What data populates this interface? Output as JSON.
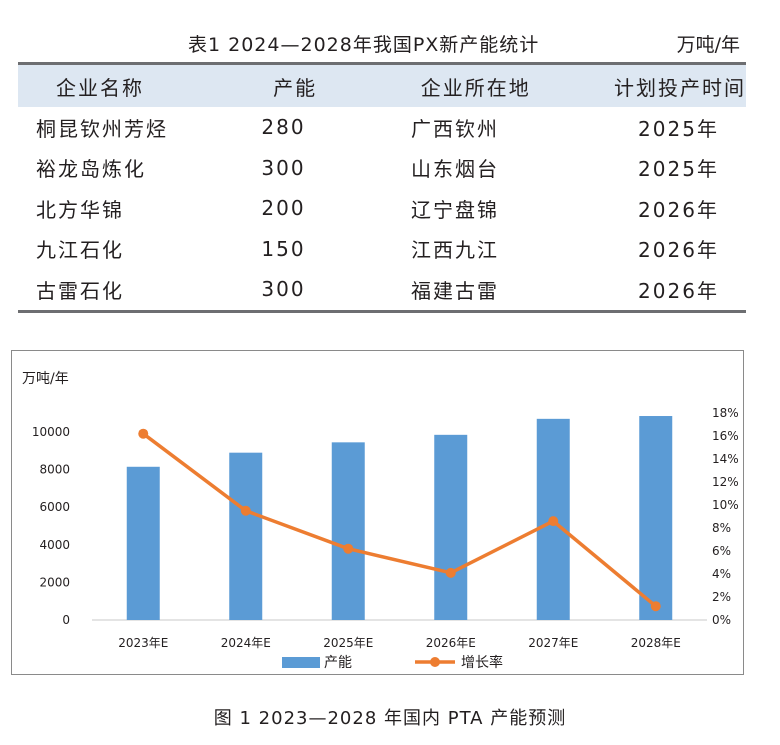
{
  "table": {
    "title": "表1  2024—2028年我国PX新产能统计",
    "unit": "万吨/年",
    "headers": [
      "企业名称",
      "产能",
      "企业所在地",
      "计划投产时间"
    ],
    "rows": [
      [
        "桐昆钦州芳烃",
        "280",
        "广西钦州",
        "2025年"
      ],
      [
        "裕龙岛炼化",
        "300",
        "山东烟台",
        "2025年"
      ],
      [
        "北方华锦",
        "200",
        "辽宁盘锦",
        "2026年"
      ],
      [
        "九江石化",
        "150",
        "江西九江",
        "2026年"
      ],
      [
        "古雷石化",
        "300",
        "福建古雷",
        "2026年"
      ]
    ]
  },
  "chart_data": {
    "type": "bar",
    "unit_label": "万吨/年",
    "categories": [
      "2023年E",
      "2024年E",
      "2025年E",
      "2026年E",
      "2027年E",
      "2028年E"
    ],
    "series": [
      {
        "name": "产能",
        "type": "bar",
        "axis": "left",
        "color": "#5b9bd5",
        "values": [
          8150,
          8900,
          9450,
          9850,
          10700,
          10850
        ]
      },
      {
        "name": "增长率",
        "type": "line",
        "axis": "right",
        "color": "#ed7d31",
        "values": [
          16.2,
          9.5,
          6.2,
          4.1,
          8.6,
          1.2
        ]
      }
    ],
    "y_left": {
      "min": 0,
      "max": 10000,
      "ticks": [
        0,
        2000,
        4000,
        6000,
        8000,
        10000
      ]
    },
    "y_right": {
      "min": 0,
      "max": 18,
      "ticks": [
        "0%",
        "2%",
        "4%",
        "6%",
        "8%",
        "10%",
        "12%",
        "14%",
        "16%",
        "18%"
      ]
    },
    "legend_position": "bottom"
  },
  "caption": "图 1   2023—2028 年国内 PTA 产能预测"
}
